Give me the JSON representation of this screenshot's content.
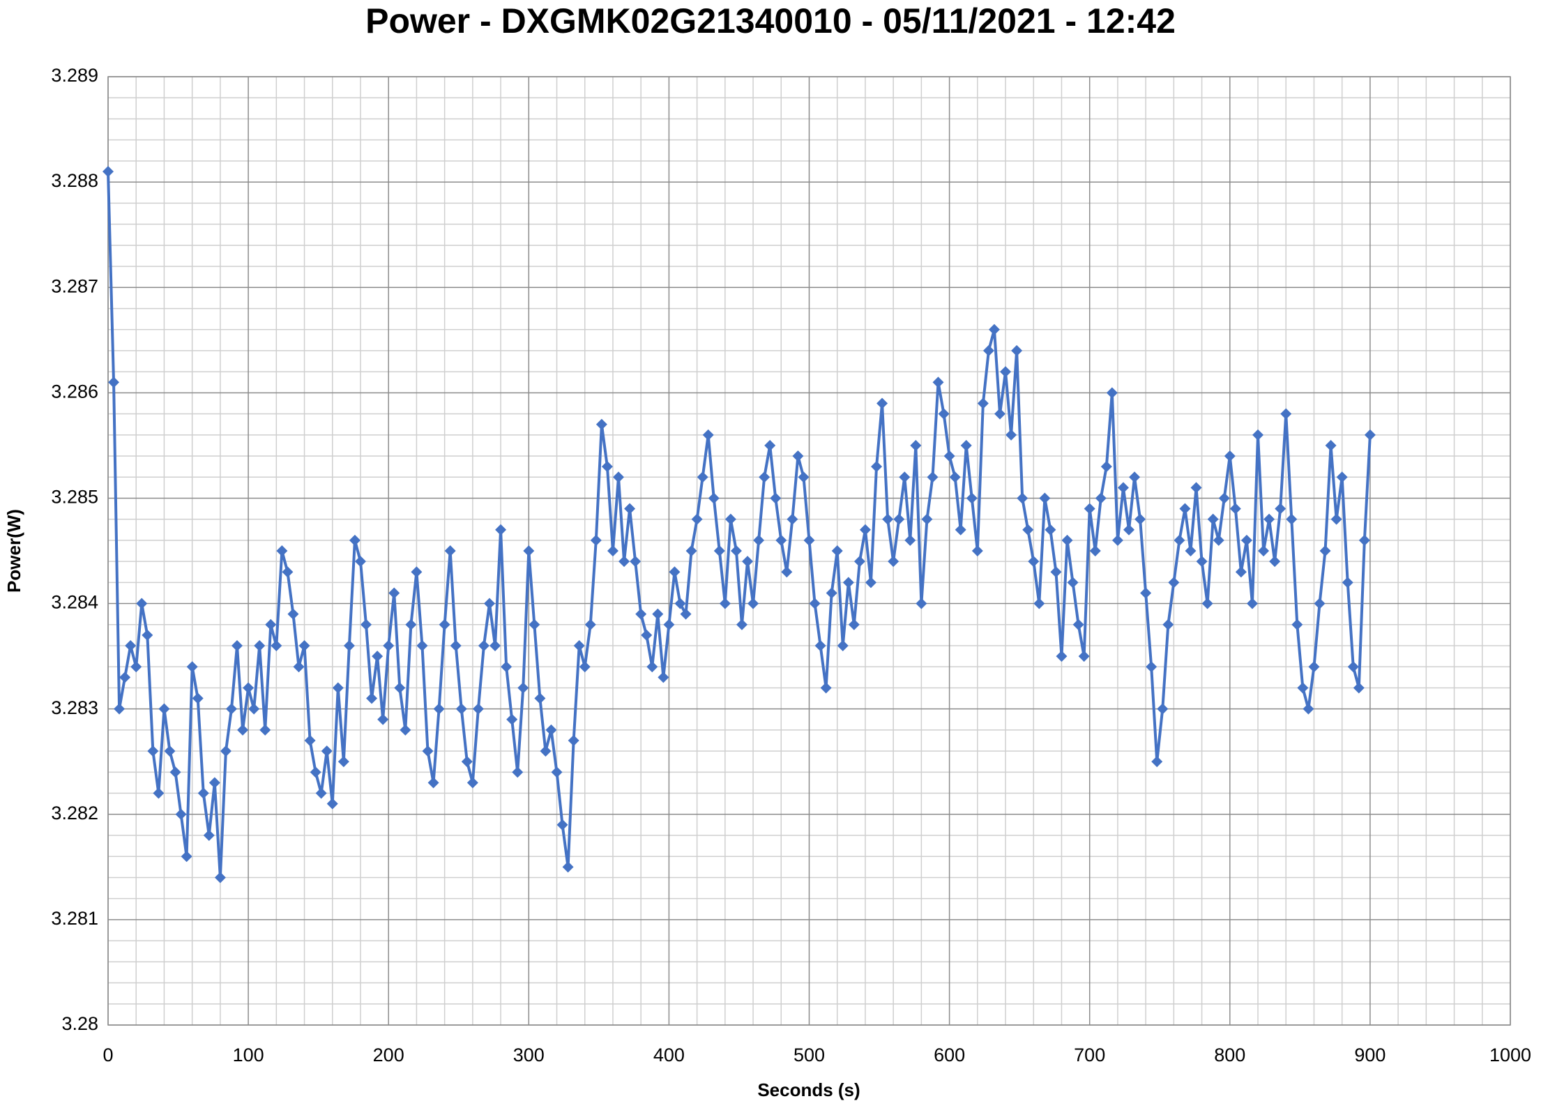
{
  "chart_data": {
    "type": "line",
    "title": "Power - DXGMK02G21340010 - 05/11/2021 - 12:42",
    "x_label": "Seconds (s)",
    "y_label": "Power(W)",
    "xlim": [
      0,
      1000
    ],
    "xticks": [
      0,
      100,
      200,
      300,
      400,
      500,
      600,
      700,
      800,
      900,
      1000
    ],
    "ylim": [
      3.28,
      3.289
    ],
    "yticks": [
      3.28,
      3.281,
      3.282,
      3.283,
      3.284,
      3.285,
      3.286,
      3.287,
      3.288,
      3.289
    ],
    "grid": true,
    "minor_grid_divisions": 5,
    "marker": "diamond",
    "x": [
      0,
      4,
      8,
      12,
      16,
      20,
      24,
      28,
      32,
      36,
      40,
      44,
      48,
      52,
      56,
      60,
      64,
      68,
      72,
      76,
      80,
      84,
      88,
      92,
      96,
      100,
      104,
      108,
      112,
      116,
      120,
      124,
      128,
      132,
      136,
      140,
      144,
      148,
      152,
      156,
      160,
      164,
      168,
      172,
      176,
      180,
      184,
      188,
      192,
      196,
      200,
      204,
      208,
      212,
      216,
      220,
      224,
      228,
      232,
      236,
      240,
      244,
      248,
      252,
      256,
      260,
      264,
      268,
      272,
      276,
      280,
      284,
      288,
      292,
      296,
      300,
      304,
      308,
      312,
      316,
      320,
      324,
      328,
      332,
      336,
      340,
      344,
      348,
      352,
      356,
      360,
      364,
      368,
      372,
      376,
      380,
      384,
      388,
      392,
      396,
      400,
      404,
      408,
      412,
      416,
      420,
      424,
      428,
      432,
      436,
      440,
      444,
      448,
      452,
      456,
      460,
      464,
      468,
      472,
      476,
      480,
      484,
      488,
      492,
      496,
      500,
      504,
      508,
      512,
      516,
      520,
      524,
      528,
      532,
      536,
      540,
      544,
      548,
      552,
      556,
      560,
      564,
      568,
      572,
      576,
      580,
      584,
      588,
      592,
      596,
      600,
      604,
      608,
      612,
      616,
      620,
      624,
      628,
      632,
      636,
      640,
      644,
      648,
      652,
      656,
      660,
      664,
      668,
      672,
      676,
      680,
      684,
      688,
      692,
      696,
      700,
      704,
      708,
      712,
      716,
      720,
      724,
      728,
      732,
      736,
      740,
      744,
      748,
      752,
      756,
      760,
      764,
      768,
      772,
      776,
      780,
      784,
      788,
      792,
      796,
      800,
      804,
      808,
      812,
      816,
      820,
      824,
      828,
      832,
      836,
      840,
      844,
      848,
      852,
      856,
      860,
      864,
      868,
      872,
      876,
      880,
      884,
      888,
      892,
      896,
      900
    ],
    "series": [
      {
        "name": "Power",
        "color": "#4472c4",
        "values": [
          3.2881,
          3.2861,
          3.283,
          3.2833,
          3.2836,
          3.2834,
          3.284,
          3.2837,
          3.2826,
          3.2822,
          3.283,
          3.2826,
          3.2824,
          3.282,
          3.2816,
          3.2834,
          3.2831,
          3.2822,
          3.2818,
          3.2823,
          3.2814,
          3.2826,
          3.283,
          3.2836,
          3.2828,
          3.2832,
          3.283,
          3.2836,
          3.2828,
          3.2838,
          3.2836,
          3.2845,
          3.2843,
          3.2839,
          3.2834,
          3.2836,
          3.2827,
          3.2824,
          3.2822,
          3.2826,
          3.2821,
          3.2832,
          3.2825,
          3.2836,
          3.2846,
          3.2844,
          3.2838,
          3.2831,
          3.2835,
          3.2829,
          3.2836,
          3.2841,
          3.2832,
          3.2828,
          3.2838,
          3.2843,
          3.2836,
          3.2826,
          3.2823,
          3.283,
          3.2838,
          3.2845,
          3.2836,
          3.283,
          3.2825,
          3.2823,
          3.283,
          3.2836,
          3.284,
          3.2836,
          3.2847,
          3.2834,
          3.2829,
          3.2824,
          3.2832,
          3.2845,
          3.2838,
          3.2831,
          3.2826,
          3.2828,
          3.2824,
          3.2819,
          3.2815,
          3.2827,
          3.2836,
          3.2834,
          3.2838,
          3.2846,
          3.2857,
          3.2853,
          3.2845,
          3.2852,
          3.2844,
          3.2849,
          3.2844,
          3.2839,
          3.2837,
          3.2834,
          3.2839,
          3.2833,
          3.2838,
          3.2843,
          3.284,
          3.2839,
          3.2845,
          3.2848,
          3.2852,
          3.2856,
          3.285,
          3.2845,
          3.284,
          3.2848,
          3.2845,
          3.2838,
          3.2844,
          3.284,
          3.2846,
          3.2852,
          3.2855,
          3.285,
          3.2846,
          3.2843,
          3.2848,
          3.2854,
          3.2852,
          3.2846,
          3.284,
          3.2836,
          3.2832,
          3.2841,
          3.2845,
          3.2836,
          3.2842,
          3.2838,
          3.2844,
          3.2847,
          3.2842,
          3.2853,
          3.2859,
          3.2848,
          3.2844,
          3.2848,
          3.2852,
          3.2846,
          3.2855,
          3.284,
          3.2848,
          3.2852,
          3.2861,
          3.2858,
          3.2854,
          3.2852,
          3.2847,
          3.2855,
          3.285,
          3.2845,
          3.2859,
          3.2864,
          3.2866,
          3.2858,
          3.2862,
          3.2856,
          3.2864,
          3.285,
          3.2847,
          3.2844,
          3.284,
          3.285,
          3.2847,
          3.2843,
          3.2835,
          3.2846,
          3.2842,
          3.2838,
          3.2835,
          3.2849,
          3.2845,
          3.285,
          3.2853,
          3.286,
          3.2846,
          3.2851,
          3.2847,
          3.2852,
          3.2848,
          3.2841,
          3.2834,
          3.2825,
          3.283,
          3.2838,
          3.2842,
          3.2846,
          3.2849,
          3.2845,
          3.2851,
          3.2844,
          3.284,
          3.2848,
          3.2846,
          3.285,
          3.2854,
          3.2849,
          3.2843,
          3.2846,
          3.284,
          3.2856,
          3.2845,
          3.2848,
          3.2844,
          3.2849,
          3.2858,
          3.2848,
          3.2838,
          3.2832,
          3.283,
          3.2834,
          3.284,
          3.2845,
          3.2855,
          3.2848,
          3.2852,
          3.2842,
          3.2834,
          3.2832,
          3.2846,
          3.2856
        ]
      }
    ]
  }
}
